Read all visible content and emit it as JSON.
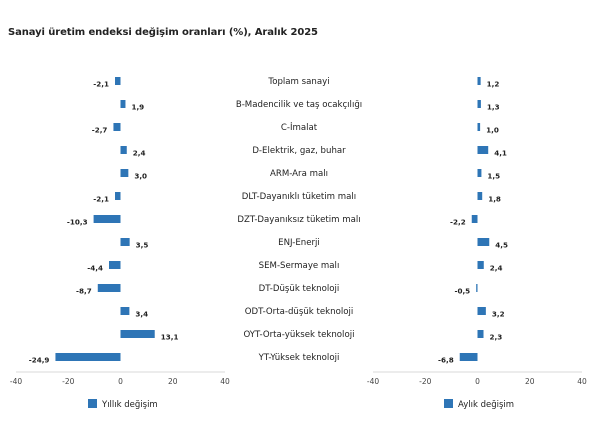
{
  "title": "Sanayi üretim endeksi değişim oranları (%), Aralık 2025",
  "colors": {
    "bar": "#2e75b6",
    "axis": "#d9d9d9"
  },
  "chart_data": {
    "type": "bar",
    "orientation": "horizontal",
    "categories": [
      "Toplam sanayi",
      "B-Madencilik ve taş ocakçılığı",
      "C-İmalat",
      "D-Elektrik, gaz, buhar",
      "ARM-Ara malı",
      "DLT-Dayanıklı tüketim malı",
      "DZT-Dayanıksız tüketim malı",
      "ENJ-Enerji",
      "SEM-Sermaye malı",
      "DT-Düşük teknoloji",
      "ODT-Orta-düşük teknoloji",
      "OYT-Orta-yüksek teknoloji",
      "YT-Yüksek teknoloji"
    ],
    "series": [
      {
        "name": "Yıllık değişim",
        "values": [
          -2.1,
          1.9,
          -2.7,
          2.4,
          3.0,
          -2.1,
          -10.3,
          3.5,
          -4.4,
          -8.7,
          3.4,
          13.1,
          -24.9
        ],
        "labels": [
          "-2,1",
          "1,9",
          "-2,7",
          "2,4",
          "3,0",
          "-2,1",
          "-10,3",
          "3,5",
          "-4,4",
          "-8,7",
          "3,4",
          "13,1",
          "-24,9"
        ],
        "xlim": [
          -40,
          40
        ],
        "ticks": [
          "-40",
          "-20",
          "0",
          "20",
          "40"
        ]
      },
      {
        "name": "Aylık değişim",
        "values": [
          1.2,
          1.3,
          1.0,
          4.1,
          1.5,
          1.8,
          -2.2,
          4.5,
          2.4,
          -0.5,
          3.2,
          2.3,
          -6.8
        ],
        "labels": [
          "1,2",
          "1,3",
          "1,0",
          "4,1",
          "1,5",
          "1,8",
          "-2,2",
          "4,5",
          "2,4",
          "-0,5",
          "3,2",
          "2,3",
          "-6,8"
        ],
        "xlim": [
          -40,
          40
        ],
        "ticks": [
          "-40",
          "-20",
          "0",
          "20",
          "40"
        ]
      }
    ],
    "grid": false,
    "legend_position": "bottom"
  }
}
